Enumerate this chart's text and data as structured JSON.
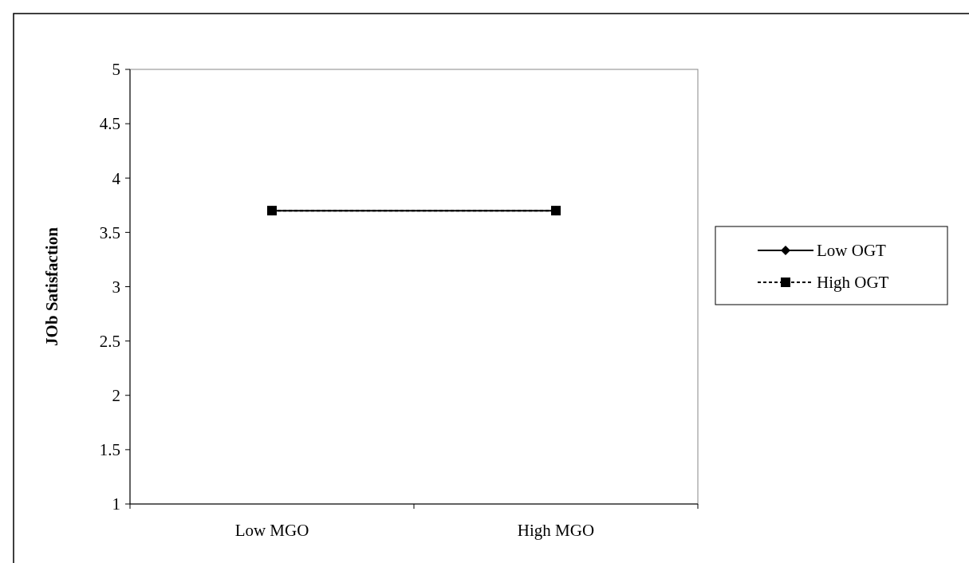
{
  "chart_data": {
    "type": "line",
    "ylabel": "JOb Satisfaction",
    "categories": [
      "Low MGO",
      "High MGO"
    ],
    "series": [
      {
        "name": "Low OGT",
        "color": "#000000",
        "values": [
          3.7,
          3.7
        ],
        "marker": "diamond",
        "line_style": "solid"
      },
      {
        "name": "High OGT",
        "color": "#000000",
        "values": [
          3.7,
          3.7
        ],
        "marker": "square",
        "line_style": "dashed"
      }
    ],
    "ylim": [
      1,
      5
    ],
    "yticks": [
      1,
      1.5,
      2,
      2.5,
      3,
      3.5,
      4,
      4.5,
      5
    ],
    "grid": false,
    "legend": "right"
  }
}
